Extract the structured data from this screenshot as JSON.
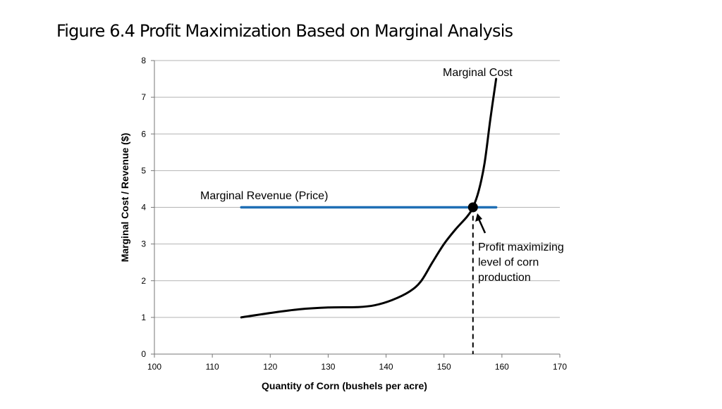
{
  "slide": {
    "title": "Figure 6.4  Profit Maximization Based on Marginal Analysis"
  },
  "colors": {
    "marginal_revenue": "#1f6fb5",
    "marginal_cost": "#000000",
    "grid": "#b3b3b3"
  },
  "chart_data": {
    "type": "line",
    "xlabel": "Quantity of Corn (bushels per acre)",
    "ylabel": "Marginal Cost / Revenue ($)",
    "xlim": [
      100,
      170
    ],
    "ylim": [
      0,
      8
    ],
    "x_ticks": [
      "100",
      "110",
      "120",
      "130",
      "140",
      "150",
      "160",
      "170"
    ],
    "y_ticks": [
      "0",
      "1",
      "2",
      "3",
      "4",
      "5",
      "6",
      "7",
      "8"
    ],
    "grid": "horizontal",
    "series": [
      {
        "name": "Marginal  Cost",
        "x": [
          115,
          120,
          125,
          130,
          135,
          138,
          141,
          144,
          146,
          148,
          150,
          152,
          154,
          155,
          156,
          157,
          158,
          159
        ],
        "y": [
          1.0,
          1.12,
          1.22,
          1.27,
          1.28,
          1.33,
          1.47,
          1.7,
          1.98,
          2.5,
          3.0,
          3.4,
          3.75,
          4.0,
          4.45,
          5.2,
          6.4,
          7.5
        ]
      },
      {
        "name": "Marginal  Revenue (Price)",
        "x": [
          115,
          159
        ],
        "y": [
          4,
          4
        ]
      }
    ],
    "intersection": {
      "x": 155,
      "y": 4
    },
    "annotation": [
      "Profit maximizing",
      "level of corn",
      "production"
    ]
  }
}
